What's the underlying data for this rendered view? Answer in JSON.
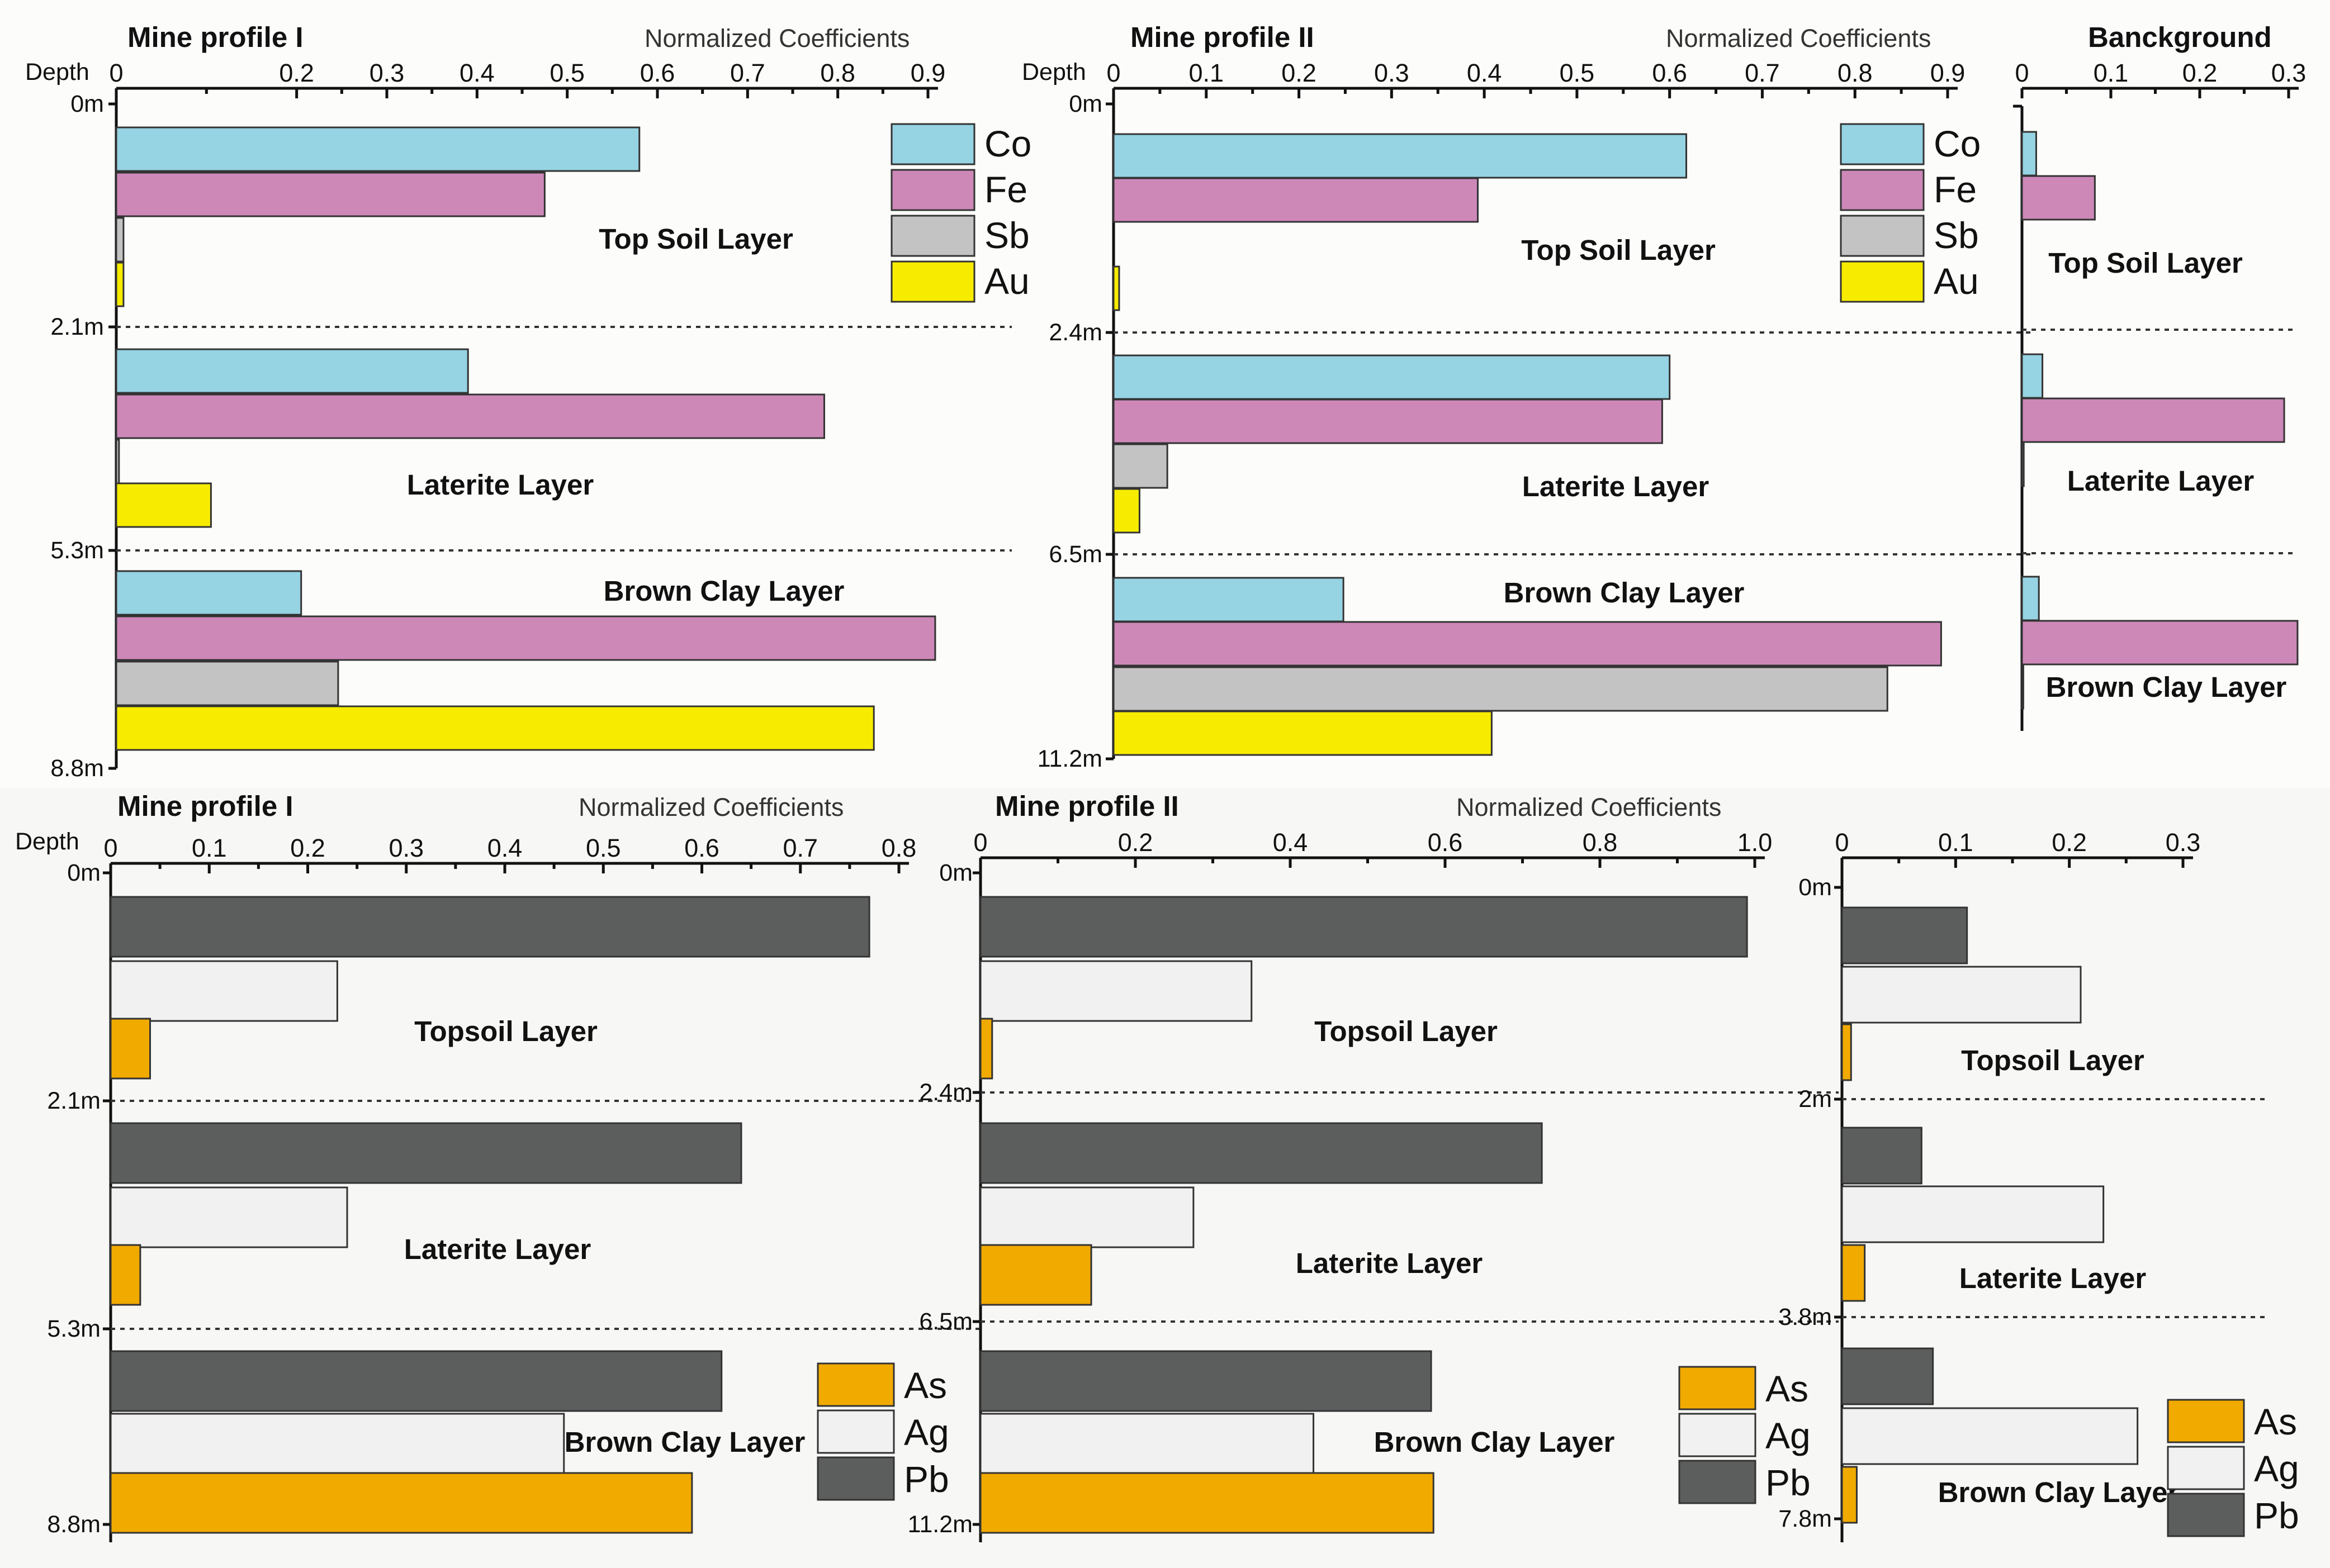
{
  "chart_data": [
    {
      "type": "bar",
      "orientation": "horizontal",
      "title": "Mine profile I",
      "xlabel": "Normalized Coefficients",
      "ylabel": "Depth",
      "xlim": [
        0,
        0.9
      ],
      "ticks": [
        "0",
        "0.2",
        "0.3",
        "0.4",
        "0.5",
        "0.6",
        "0.7",
        "0.8",
        "0.9"
      ],
      "tick_values": [
        0,
        0.2,
        0.3,
        0.4,
        0.5,
        0.6,
        0.7,
        0.8,
        0.9
      ],
      "depth_labels": [
        "0m",
        "2.1m",
        "5.3m",
        "8.8m"
      ],
      "layers": [
        {
          "name": "Top Soil Layer",
          "values": [
            0.58,
            0.475,
            0.008,
            0.008
          ]
        },
        {
          "name": "Laterite Layer",
          "values": [
            0.39,
            0.785,
            0.003,
            0.105
          ]
        },
        {
          "name": "Brown Clay Layer",
          "values": [
            0.205,
            0.908,
            0.246,
            0.84
          ]
        }
      ],
      "series": [
        "Co",
        "Fe",
        "Sb",
        "Au"
      ],
      "legend": "top-right"
    },
    {
      "type": "bar",
      "orientation": "horizontal",
      "title": "Mine profile II",
      "xlabel": "Normalized Coefficients",
      "ylabel": "Depth",
      "xlim": [
        0,
        0.9
      ],
      "ticks": [
        "0",
        "0.1",
        "0.2",
        "0.3",
        "0.4",
        "0.5",
        "0.6",
        "0.7",
        "0.8",
        "0.9"
      ],
      "tick_values": [
        0,
        0.1,
        0.2,
        0.3,
        0.4,
        0.5,
        0.6,
        0.7,
        0.8,
        0.9
      ],
      "depth_labels": [
        "0m",
        "2.4m",
        "6.5m",
        "11.2m"
      ],
      "layers": [
        {
          "name": "Top Soil Layer",
          "values": [
            0.618,
            0.393,
            0.0,
            0.006
          ]
        },
        {
          "name": "Laterite Layer",
          "values": [
            0.6,
            0.592,
            0.058,
            0.028
          ]
        },
        {
          "name": "Brown Clay Layer",
          "values": [
            0.248,
            0.893,
            0.835,
            0.408
          ]
        }
      ],
      "series": [
        "Co",
        "Fe",
        "Sb",
        "Au"
      ],
      "legend": "top-right"
    },
    {
      "type": "bar",
      "orientation": "horizontal",
      "title": "Banckground",
      "xlim": [
        0,
        0.3
      ],
      "ticks": [
        "0",
        "0.1",
        "0.2",
        "0.3"
      ],
      "tick_values": [
        0,
        0.1,
        0.2,
        0.3
      ],
      "depth_labels": [],
      "layers": [
        {
          "name": "Top Soil Layer",
          "values": [
            0.016,
            0.082,
            0.0,
            0.0
          ]
        },
        {
          "name": "Laterite Layer",
          "values": [
            0.023,
            0.295,
            0.002,
            0.0
          ]
        },
        {
          "name": "Brown Clay Layer",
          "values": [
            0.019,
            0.31,
            0.0015,
            0.0
          ]
        }
      ],
      "series": [
        "Co",
        "Fe",
        "Sb",
        "Au"
      ]
    },
    {
      "type": "bar",
      "orientation": "horizontal",
      "title": "Mine profile I",
      "xlabel": "Normalized Coefficients",
      "ylabel": "Depth",
      "xlim": [
        0,
        0.8
      ],
      "ticks": [
        "0",
        "0.1",
        "0.2",
        "0.3",
        "0.4",
        "0.5",
        "0.6",
        "0.7",
        "0.8"
      ],
      "tick_values": [
        0,
        0.1,
        0.2,
        0.3,
        0.4,
        0.5,
        0.6,
        0.7,
        0.8
      ],
      "depth_labels": [
        "0m",
        "2.1m",
        "5.3m",
        "8.8m"
      ],
      "layers": [
        {
          "name": "Topsoil Layer",
          "values": [
            0.77,
            0.23,
            0.04
          ]
        },
        {
          "name": "Laterite Layer",
          "values": [
            0.64,
            0.24,
            0.03
          ]
        },
        {
          "name": "Brown Clay Layer",
          "values": [
            0.62,
            0.46,
            0.59
          ]
        }
      ],
      "series": [
        "Pb",
        "Ag",
        "As"
      ],
      "legend": "bottom-right"
    },
    {
      "type": "bar",
      "orientation": "horizontal",
      "title": "Mine profile II",
      "xlabel": "Normalized Coefficients",
      "xlim": [
        0,
        1.0
      ],
      "ticks": [
        "0",
        "0.2",
        "0.4",
        "0.6",
        "0.8",
        "1.0"
      ],
      "tick_values": [
        0,
        0.2,
        0.4,
        0.6,
        0.8,
        1.0
      ],
      "depth_labels": [
        "0m",
        "2.4m",
        "6.5m",
        "11.2m"
      ],
      "layers": [
        {
          "name": "Topsoil Layer",
          "values": [
            0.99,
            0.35,
            0.015
          ]
        },
        {
          "name": "Laterite Layer",
          "values": [
            0.725,
            0.275,
            0.143
          ]
        },
        {
          "name": "Brown Clay Layer",
          "values": [
            0.582,
            0.43,
            0.585
          ]
        }
      ],
      "series": [
        "Pb",
        "Ag",
        "As"
      ],
      "legend": "bottom-right"
    },
    {
      "type": "bar",
      "orientation": "horizontal",
      "title": "",
      "xlim": [
        0,
        0.3
      ],
      "ticks": [
        "0",
        "0.1",
        "0.2",
        "0.3"
      ],
      "tick_values": [
        0,
        0.1,
        0.2,
        0.3
      ],
      "depth_labels": [
        "0m",
        "2m",
        "3.8m",
        "7.8m"
      ],
      "layers": [
        {
          "name": "Topsoil Layer",
          "values": [
            0.11,
            0.21,
            0.008
          ]
        },
        {
          "name": "Laterite Layer",
          "values": [
            0.07,
            0.23,
            0.02
          ]
        },
        {
          "name": "Brown Clay Layer",
          "values": [
            0.08,
            0.26,
            0.013
          ]
        }
      ],
      "series": [
        "Pb",
        "Ag",
        "As"
      ],
      "legend": "bottom-right"
    }
  ],
  "colors": {
    "Co": "#96d3e3",
    "Fe": "#cd88b8",
    "Sb": "#c3c3c3",
    "Au": "#f7ec00",
    "Pb": "#5c5e5e",
    "Ag": "#f1f1f1",
    "As": "#f1aa00"
  }
}
